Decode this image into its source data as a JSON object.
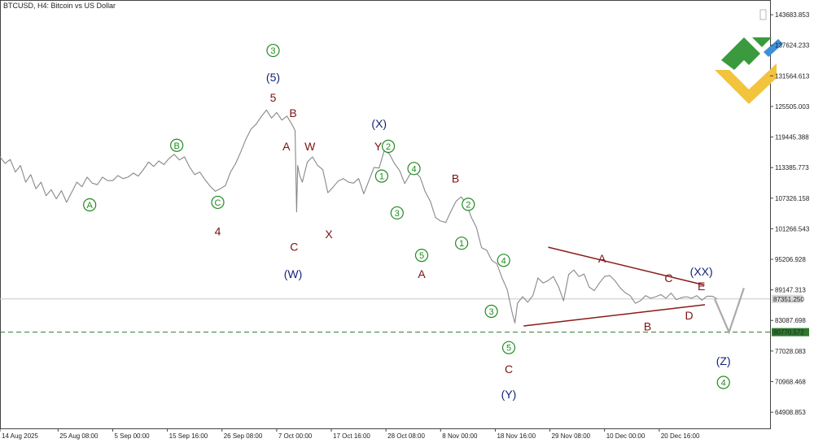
{
  "chart_data": {
    "type": "line",
    "title": "BTCUSD, H4:  Bitcoin vs US Dollar",
    "y_axis": {
      "side": "right",
      "ylim": [
        61700,
        146600
      ],
      "ticks": [
        "143683.853",
        "137624.233",
        "131564.613",
        "125505.003",
        "119445.388",
        "113385.773",
        "107326.158",
        "101266.543",
        "95206.928",
        "89147.313",
        "83087.698",
        "77028.083",
        "70968.468",
        "64908.853"
      ]
    },
    "x_axis": {
      "ticks": [
        {
          "label": "14 Aug 2025",
          "day": 0
        },
        {
          "label": "25 Aug 08:00",
          "day": 11.33
        },
        {
          "label": "5 Sep 00:00",
          "day": 22
        },
        {
          "label": "15 Sep 16:00",
          "day": 32.67
        },
        {
          "label": "26 Sep 08:00",
          "day": 43.33
        },
        {
          "label": "7 Oct 00:00",
          "day": 54
        },
        {
          "label": "17 Oct 16:00",
          "day": 64.67
        },
        {
          "label": "28 Oct 08:00",
          "day": 75.33
        },
        {
          "label": "8 Nov 00:00",
          "day": 86
        },
        {
          "label": "18 Nov 16:00",
          "day": 96.67
        },
        {
          "label": "29 Nov 08:00",
          "day": 107.33
        },
        {
          "label": "10 Dec 00:00",
          "day": 118
        },
        {
          "label": "20 Dec 16:00",
          "day": 128.67
        }
      ]
    },
    "current_price": {
      "label": "87351.250",
      "value": 87351.25
    },
    "support_level": {
      "label": "80770.572",
      "value": 80770.572
    },
    "price_series": [
      [
        0,
        115500
      ],
      [
        1,
        114200
      ],
      [
        2,
        115000
      ],
      [
        3,
        112500
      ],
      [
        4,
        113800
      ],
      [
        5,
        110500
      ],
      [
        6,
        112000
      ],
      [
        7,
        109200
      ],
      [
        8,
        110500
      ],
      [
        9,
        107800
      ],
      [
        10,
        109000
      ],
      [
        11,
        107200
      ],
      [
        12,
        108800
      ],
      [
        13,
        106500
      ],
      [
        14,
        108500
      ],
      [
        15,
        110500
      ],
      [
        16,
        109600
      ],
      [
        17,
        111500
      ],
      [
        18,
        110300
      ],
      [
        19,
        110000
      ],
      [
        20,
        111500
      ],
      [
        21,
        110800
      ],
      [
        22,
        110800
      ],
      [
        23,
        111800
      ],
      [
        24,
        111200
      ],
      [
        25,
        111500
      ],
      [
        26,
        112300
      ],
      [
        27,
        111700
      ],
      [
        28,
        113000
      ],
      [
        29,
        114500
      ],
      [
        30,
        113600
      ],
      [
        31,
        114700
      ],
      [
        32,
        114000
      ],
      [
        33,
        115200
      ],
      [
        34,
        116000
      ],
      [
        35,
        114900
      ],
      [
        36,
        115500
      ],
      [
        37,
        113500
      ],
      [
        38,
        112000
      ],
      [
        39,
        112500
      ],
      [
        40,
        111000
      ],
      [
        41,
        109700
      ],
      [
        42,
        108700
      ],
      [
        43,
        109200
      ],
      [
        44,
        109800
      ],
      [
        45,
        112500
      ],
      [
        46,
        114200
      ],
      [
        47,
        116500
      ],
      [
        48,
        119000
      ],
      [
        49,
        121000
      ],
      [
        50,
        122000
      ],
      [
        51,
        123500
      ],
      [
        52,
        124800
      ],
      [
        53,
        123200
      ],
      [
        54,
        124300
      ],
      [
        55,
        122800
      ],
      [
        56,
        123600
      ],
      [
        57,
        121900
      ],
      [
        57.6,
        120700
      ],
      [
        57.9,
        104600
      ],
      [
        58.1,
        113800
      ],
      [
        58.5,
        111800
      ],
      [
        59,
        110500
      ],
      [
        60,
        114500
      ],
      [
        61,
        115500
      ],
      [
        62,
        113800
      ],
      [
        63,
        113000
      ],
      [
        64,
        108400
      ],
      [
        65,
        109500
      ],
      [
        66,
        110700
      ],
      [
        67,
        111200
      ],
      [
        68,
        110500
      ],
      [
        69,
        110300
      ],
      [
        70,
        111200
      ],
      [
        71,
        108200
      ],
      [
        72,
        110800
      ],
      [
        73,
        113400
      ],
      [
        74,
        113300
      ],
      [
        75,
        116800
      ],
      [
        76,
        116100
      ],
      [
        77,
        114200
      ],
      [
        78,
        112800
      ],
      [
        79,
        110200
      ],
      [
        80,
        112000
      ],
      [
        81,
        112500
      ],
      [
        82,
        111500
      ],
      [
        83,
        108600
      ],
      [
        84,
        106700
      ],
      [
        85,
        103500
      ],
      [
        86,
        102800
      ],
      [
        87,
        102500
      ],
      [
        88,
        104700
      ],
      [
        89,
        106700
      ],
      [
        90,
        107600
      ],
      [
        91,
        106300
      ],
      [
        92,
        103500
      ],
      [
        93,
        101500
      ],
      [
        94,
        97500
      ],
      [
        95,
        97000
      ],
      [
        96,
        95000
      ],
      [
        97,
        94300
      ],
      [
        98,
        91500
      ],
      [
        99,
        89200
      ],
      [
        100,
        84500
      ],
      [
        100.5,
        82600
      ],
      [
        101,
        86500
      ],
      [
        102,
        87800
      ],
      [
        103,
        86700
      ],
      [
        104,
        88000
      ],
      [
        105,
        91500
      ],
      [
        106,
        90500
      ],
      [
        107,
        91000
      ],
      [
        108,
        91800
      ],
      [
        109,
        89800
      ],
      [
        110,
        87000
      ],
      [
        111,
        92200
      ],
      [
        112,
        93100
      ],
      [
        113,
        91800
      ],
      [
        114,
        92300
      ],
      [
        115,
        89700
      ],
      [
        116,
        89000
      ],
      [
        117,
        90500
      ],
      [
        118,
        91800
      ],
      [
        119,
        92000
      ],
      [
        120,
        91000
      ],
      [
        121,
        89600
      ],
      [
        122,
        88600
      ],
      [
        123,
        88000
      ],
      [
        124,
        86500
      ],
      [
        125,
        87000
      ],
      [
        126,
        88000
      ],
      [
        127,
        87500
      ],
      [
        128,
        87800
      ],
      [
        129,
        88200
      ],
      [
        130,
        87500
      ],
      [
        131,
        88500
      ],
      [
        132,
        87200
      ],
      [
        133,
        87600
      ],
      [
        134,
        87800
      ],
      [
        135,
        87500
      ],
      [
        136,
        88000
      ],
      [
        137,
        87100
      ],
      [
        138,
        87900
      ],
      [
        139,
        87900
      ],
      [
        140,
        87351
      ]
    ],
    "projection": [
      [
        139.5,
        87351
      ],
      [
        142.3,
        80770.572
      ],
      [
        145.2,
        89500
      ]
    ],
    "wave_labels": [
      {
        "text": "A",
        "style": "circle-green",
        "day": 17.5,
        "price": 106000
      },
      {
        "text": "B",
        "style": "circle-green",
        "day": 34.5,
        "price": 117800
      },
      {
        "text": "C",
        "style": "circle-green",
        "day": 42.5,
        "price": 106500
      },
      {
        "text": "4",
        "style": "maroon",
        "day": 42.5,
        "price": 100800
      },
      {
        "text": "3",
        "style": "circle-green",
        "day": 53.3,
        "price": 136600
      },
      {
        "text": "(5)",
        "style": "navy",
        "day": 53.3,
        "price": 131300
      },
      {
        "text": "5",
        "style": "maroon",
        "day": 53.3,
        "price": 127300
      },
      {
        "text": "B",
        "style": "maroon",
        "day": 57.2,
        "price": 124200
      },
      {
        "text": "A",
        "style": "maroon",
        "day": 55.9,
        "price": 117600
      },
      {
        "text": "W",
        "style": "maroon",
        "day": 60.5,
        "price": 117600
      },
      {
        "text": "C",
        "style": "maroon",
        "day": 57.4,
        "price": 97700
      },
      {
        "text": "(W)",
        "style": "navy",
        "day": 57.2,
        "price": 92300
      },
      {
        "text": "X",
        "style": "maroon",
        "day": 64.2,
        "price": 100200
      },
      {
        "text": "(X)",
        "style": "navy",
        "day": 74.0,
        "price": 122100
      },
      {
        "text": "Y",
        "style": "maroon",
        "day": 73.8,
        "price": 117600
      },
      {
        "text": "2",
        "style": "circle-green",
        "day": 75.8,
        "price": 117600
      },
      {
        "text": "1",
        "style": "circle-green",
        "day": 74.5,
        "price": 111700
      },
      {
        "text": "4",
        "style": "circle-green",
        "day": 80.8,
        "price": 113200
      },
      {
        "text": "3",
        "style": "circle-green",
        "day": 77.5,
        "price": 104400
      },
      {
        "text": "B",
        "style": "maroon",
        "day": 88.9,
        "price": 111200
      },
      {
        "text": "2",
        "style": "circle-green",
        "day": 91.4,
        "price": 106100
      },
      {
        "text": "1",
        "style": "circle-green",
        "day": 90.1,
        "price": 98400
      },
      {
        "text": "5",
        "style": "circle-green",
        "day": 82.3,
        "price": 96000
      },
      {
        "text": "A",
        "style": "maroon",
        "day": 82.3,
        "price": 92300
      },
      {
        "text": "4",
        "style": "circle-green",
        "day": 98.3,
        "price": 95000
      },
      {
        "text": "3",
        "style": "circle-green",
        "day": 95.9,
        "price": 84900
      },
      {
        "text": "5",
        "style": "circle-green",
        "day": 99.3,
        "price": 77700
      },
      {
        "text": "C",
        "style": "maroon",
        "day": 99.3,
        "price": 73500
      },
      {
        "text": "(Y)",
        "style": "navy",
        "day": 99.3,
        "price": 68500
      },
      {
        "text": "A",
        "style": "maroon",
        "day": 117.5,
        "price": 95400
      },
      {
        "text": "C",
        "style": "maroon",
        "day": 130.5,
        "price": 91500
      },
      {
        "text": "(XX)",
        "style": "navy",
        "day": 136.9,
        "price": 92800
      },
      {
        "text": "E",
        "style": "maroon",
        "day": 136.9,
        "price": 89900
      },
      {
        "text": "D",
        "style": "maroon",
        "day": 134.5,
        "price": 84100
      },
      {
        "text": "B",
        "style": "maroon",
        "day": 126.4,
        "price": 81900
      },
      {
        "text": "(Z)",
        "style": "navy",
        "day": 141.2,
        "price": 75100
      },
      {
        "text": "4",
        "style": "circle-green",
        "day": 141.2,
        "price": 70800
      }
    ],
    "trendlines": [
      {
        "from": [
          107.0,
          97600
        ],
        "to": [
          137.5,
          90100
        ]
      },
      {
        "from": [
          102.2,
          82000
        ],
        "to": [
          137.6,
          86200
        ]
      }
    ]
  }
}
